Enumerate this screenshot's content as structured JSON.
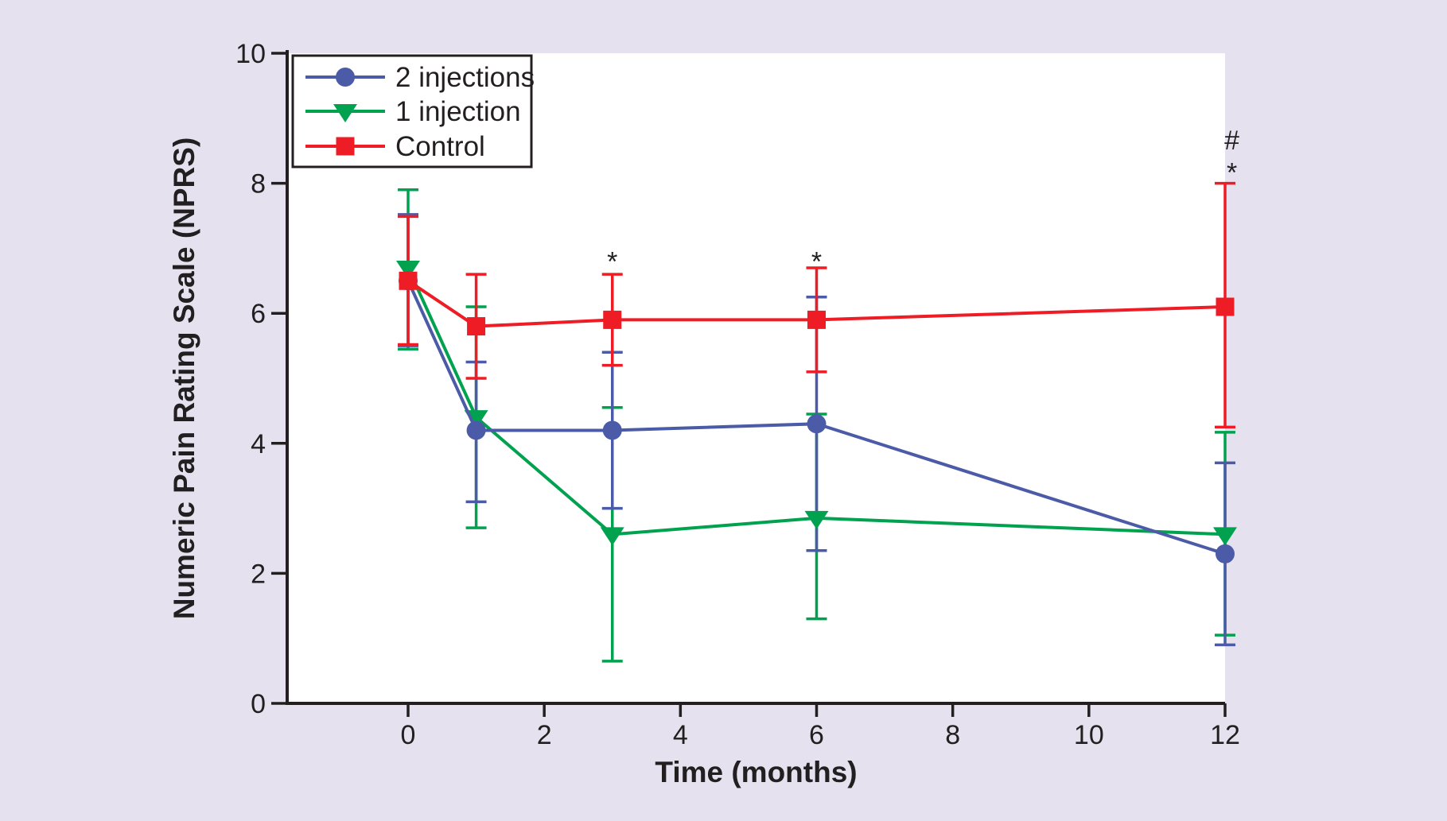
{
  "figure": {
    "background_color": "#E5E1EE",
    "plot_background_color": "#FFFFFF",
    "axis_color": "#231F20"
  },
  "chart_data": {
    "type": "line",
    "title": "",
    "xlabel": "Time (months)",
    "ylabel": "Numeric Pain Rating Scale (NPRS)",
    "x": [
      0,
      1,
      3,
      6,
      12
    ],
    "xticks": [
      0,
      2,
      4,
      6,
      8,
      10,
      12
    ],
    "yticks": [
      0,
      2,
      4,
      6,
      8,
      10
    ],
    "xlim": [
      -1.78,
      12
    ],
    "ylim": [
      0,
      10
    ],
    "grid": false,
    "legend_position": "top-left",
    "series": [
      {
        "name": "2 injections",
        "color": "#4C5BA7",
        "marker": "circle",
        "values": [
          6.5,
          4.2,
          4.2,
          4.3,
          2.3
        ],
        "err_upper": [
          7.52,
          5.25,
          5.4,
          6.25,
          3.7
        ],
        "err_lower": [
          5.5,
          3.1,
          3.0,
          2.35,
          0.9
        ]
      },
      {
        "name": "1 injection",
        "color": "#00A24F",
        "marker": "triangle-down",
        "values": [
          6.7,
          4.4,
          2.6,
          2.85,
          2.6
        ],
        "err_upper": [
          7.9,
          6.1,
          4.55,
          4.45,
          4.17
        ],
        "err_lower": [
          5.45,
          2.7,
          0.65,
          1.3,
          1.05
        ]
      },
      {
        "name": "Control",
        "color": "#EE1C24",
        "marker": "square",
        "values": [
          6.5,
          5.8,
          5.9,
          5.9,
          6.1
        ],
        "err_upper": [
          7.49,
          6.6,
          6.6,
          6.7,
          8.0
        ],
        "err_lower": [
          5.52,
          5.0,
          5.2,
          5.1,
          4.25
        ]
      }
    ],
    "annotations": [
      {
        "text": "*",
        "x": 3,
        "y": 6.85
      },
      {
        "text": "*",
        "x": 6,
        "y": 6.85
      },
      {
        "text": "#",
        "x": 12.1,
        "y": 8.67
      },
      {
        "text": "*",
        "x": 12.1,
        "y": 8.22
      }
    ]
  }
}
